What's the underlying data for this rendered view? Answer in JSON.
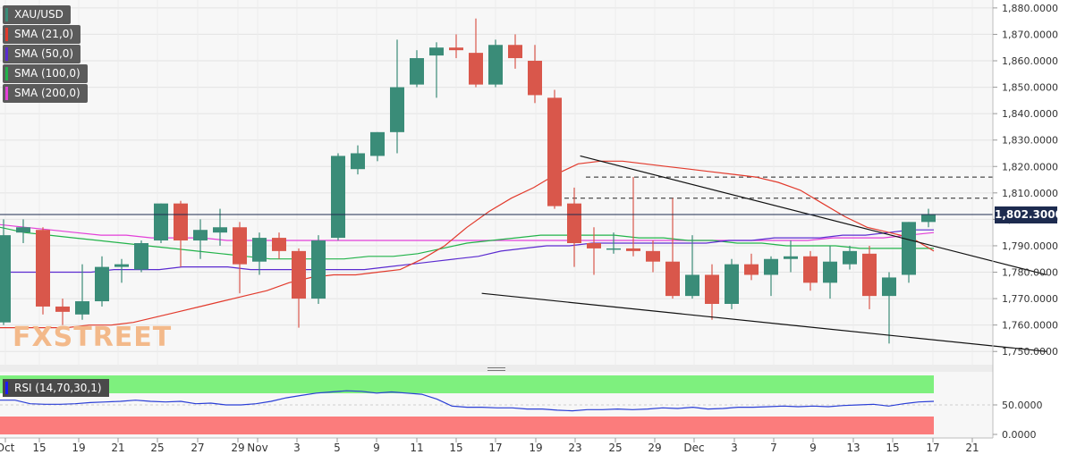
{
  "chart_data": {
    "type": "candlestick",
    "symbol": "XAU/USD",
    "last_price_label": "1,802.3000",
    "last_price": 1802.3,
    "ylim": [
      1745,
      1883
    ],
    "y_ticks": [
      "1,880.0000",
      "1,870.0000",
      "1,860.0000",
      "1,850.0000",
      "1,840.0000",
      "1,830.0000",
      "1,820.0000",
      "1,810.0000",
      "1,800.0000",
      "1,790.0000",
      "1,780.0000",
      "1,770.0000",
      "1,760.0000",
      "1,750.0000"
    ],
    "x_ticks": [
      "Oct",
      "15",
      "19",
      "21",
      "25",
      "27",
      "29",
      "Nov",
      "3",
      "5",
      "9",
      "11",
      "15",
      "17",
      "19",
      "23",
      "25",
      "29",
      "Dec",
      "3",
      "7",
      "9",
      "13",
      "15",
      "17",
      "21"
    ],
    "colors": {
      "up": "#3a8c78",
      "down": "#d9574b",
      "sma21": "#e23a2c",
      "sma50": "#5b2bd0",
      "sma100": "#22b34a",
      "sma200": "#e33fd8",
      "trend": "#111111",
      "rsi": "#2a3ed6"
    },
    "candles": [
      {
        "o": 1761,
        "h": 1800,
        "l": 1760,
        "c": 1794
      },
      {
        "o": 1795,
        "h": 1800,
        "l": 1791,
        "c": 1797
      },
      {
        "o": 1796,
        "h": 1797,
        "l": 1764,
        "c": 1767
      },
      {
        "o": 1767,
        "h": 1770,
        "l": 1760,
        "c": 1765
      },
      {
        "o": 1764,
        "h": 1783,
        "l": 1762,
        "c": 1769
      },
      {
        "o": 1769,
        "h": 1786,
        "l": 1767,
        "c": 1782
      },
      {
        "o": 1782,
        "h": 1785,
        "l": 1776,
        "c": 1783
      },
      {
        "o": 1781,
        "h": 1792,
        "l": 1780,
        "c": 1791
      },
      {
        "o": 1792,
        "h": 1806,
        "l": 1791,
        "c": 1806
      },
      {
        "o": 1806,
        "h": 1807,
        "l": 1782,
        "c": 1792
      },
      {
        "o": 1792,
        "h": 1800,
        "l": 1785,
        "c": 1796
      },
      {
        "o": 1795,
        "h": 1804,
        "l": 1790,
        "c": 1797
      },
      {
        "o": 1797,
        "h": 1799,
        "l": 1772,
        "c": 1783
      },
      {
        "o": 1784,
        "h": 1795,
        "l": 1779,
        "c": 1793
      },
      {
        "o": 1793,
        "h": 1795,
        "l": 1785,
        "c": 1788
      },
      {
        "o": 1788,
        "h": 1789,
        "l": 1759,
        "c": 1770
      },
      {
        "o": 1770,
        "h": 1794,
        "l": 1768,
        "c": 1792
      },
      {
        "o": 1793,
        "h": 1825,
        "l": 1792,
        "c": 1824
      },
      {
        "o": 1819,
        "h": 1828,
        "l": 1817,
        "c": 1825
      },
      {
        "o": 1824,
        "h": 1833,
        "l": 1822,
        "c": 1833
      },
      {
        "o": 1833,
        "h": 1868,
        "l": 1825,
        "c": 1850
      },
      {
        "o": 1851,
        "h": 1864,
        "l": 1850,
        "c": 1861
      },
      {
        "o": 1862,
        "h": 1867,
        "l": 1846,
        "c": 1865
      },
      {
        "o": 1865,
        "h": 1870,
        "l": 1861,
        "c": 1864
      },
      {
        "o": 1863,
        "h": 1876,
        "l": 1850,
        "c": 1851
      },
      {
        "o": 1851,
        "h": 1868,
        "l": 1850,
        "c": 1866
      },
      {
        "o": 1866,
        "h": 1870,
        "l": 1857,
        "c": 1861
      },
      {
        "o": 1860,
        "h": 1866,
        "l": 1844,
        "c": 1847
      },
      {
        "o": 1846,
        "h": 1849,
        "l": 1804,
        "c": 1805
      },
      {
        "o": 1806,
        "h": 1812,
        "l": 1782,
        "c": 1791
      },
      {
        "o": 1791,
        "h": 1797,
        "l": 1779,
        "c": 1789
      },
      {
        "o": 1789,
        "h": 1795,
        "l": 1787,
        "c": 1789
      },
      {
        "o": 1789,
        "h": 1816,
        "l": 1786,
        "c": 1788
      },
      {
        "o": 1788,
        "h": 1792,
        "l": 1780,
        "c": 1784
      },
      {
        "o": 1784,
        "h": 1808,
        "l": 1770,
        "c": 1771
      },
      {
        "o": 1771,
        "h": 1794,
        "l": 1770,
        "c": 1779
      },
      {
        "o": 1779,
        "h": 1783,
        "l": 1762,
        "c": 1768
      },
      {
        "o": 1768,
        "h": 1785,
        "l": 1766,
        "c": 1783
      },
      {
        "o": 1783,
        "h": 1787,
        "l": 1777,
        "c": 1779
      },
      {
        "o": 1779,
        "h": 1786,
        "l": 1771,
        "c": 1785
      },
      {
        "o": 1785,
        "h": 1792,
        "l": 1780,
        "c": 1786
      },
      {
        "o": 1786,
        "h": 1788,
        "l": 1773,
        "c": 1776
      },
      {
        "o": 1776,
        "h": 1790,
        "l": 1770,
        "c": 1784
      },
      {
        "o": 1783,
        "h": 1790,
        "l": 1781,
        "c": 1788
      },
      {
        "o": 1787,
        "h": 1790,
        "l": 1766,
        "c": 1771
      },
      {
        "o": 1771,
        "h": 1780,
        "l": 1753,
        "c": 1778
      },
      {
        "o": 1779,
        "h": 1799,
        "l": 1776,
        "c": 1799
      },
      {
        "o": 1799,
        "h": 1804,
        "l": 1797,
        "c": 1802
      }
    ],
    "sma21": [
      1759,
      1759,
      1759,
      1759,
      1760,
      1760,
      1761,
      1763,
      1765,
      1767,
      1769,
      1771,
      1773,
      1776,
      1778,
      1779,
      1779,
      1780,
      1781,
      1785,
      1790,
      1797,
      1803,
      1808,
      1812,
      1817,
      1821,
      1822,
      1822,
      1821,
      1820,
      1819,
      1818,
      1817,
      1816,
      1814,
      1811,
      1806,
      1801,
      1797,
      1795,
      1793,
      1788
    ],
    "sma50": [
      1780,
      1780,
      1780,
      1780,
      1780,
      1781,
      1781,
      1781,
      1782,
      1782,
      1782,
      1781,
      1781,
      1781,
      1781,
      1781,
      1781,
      1782,
      1783,
      1784,
      1785,
      1786,
      1788,
      1789,
      1790,
      1790,
      1791,
      1791,
      1791,
      1791,
      1791,
      1791,
      1792,
      1792,
      1793,
      1793,
      1793,
      1794,
      1794,
      1795,
      1796,
      1796
    ],
    "sma100": [
      1797,
      1795,
      1794,
      1793,
      1792,
      1791,
      1790,
      1789,
      1788,
      1787,
      1786,
      1785,
      1785,
      1785,
      1785,
      1786,
      1786,
      1787,
      1789,
      1791,
      1792,
      1793,
      1794,
      1794,
      1794,
      1794,
      1793,
      1793,
      1792,
      1792,
      1791,
      1791,
      1790,
      1790,
      1790,
      1789,
      1789,
      1789,
      1789
    ],
    "sma200": [
      1798,
      1797,
      1796,
      1795,
      1794,
      1794,
      1793,
      1793,
      1793,
      1792,
      1792,
      1792,
      1792,
      1792,
      1792,
      1792,
      1792,
      1792,
      1792,
      1792,
      1792,
      1792,
      1792,
      1792,
      1792,
      1792,
      1792,
      1792,
      1792,
      1792,
      1792,
      1792,
      1792,
      1793,
      1793,
      1793,
      1794,
      1795
    ],
    "dashed_levels": [
      1816,
      1808
    ],
    "trendlines": [
      {
        "from": [
          29.3,
          1824
        ],
        "to": [
          53,
          1779
        ]
      },
      {
        "from": [
          24.3,
          1772
        ],
        "to": [
          53,
          1750
        ]
      }
    ],
    "rsi_ticks": [
      "50.0000",
      "0.0000"
    ],
    "rsi_series": [
      58,
      58,
      52,
      51,
      51,
      52,
      54,
      55,
      56,
      58,
      56,
      55,
      56,
      52,
      53,
      50,
      50,
      52,
      56,
      62,
      66,
      70,
      72,
      74,
      73,
      70,
      72,
      70,
      68,
      60,
      48,
      46,
      46,
      45,
      45,
      43,
      43,
      41,
      40,
      42,
      42,
      43,
      42,
      43,
      45,
      44,
      46,
      43,
      44,
      46,
      46,
      47,
      48,
      47,
      48,
      47,
      49,
      50,
      51,
      48,
      52,
      55,
      56
    ],
    "legend": [
      {
        "label": "XAU/USD",
        "color": "#3a8c78"
      },
      {
        "label": "SMA (21,0)",
        "color": "#e23a2c"
      },
      {
        "label": "SMA (50,0)",
        "color": "#5b2bd0"
      },
      {
        "label": "SMA (100,0)",
        "color": "#22b34a"
      },
      {
        "label": "SMA (200,0)",
        "color": "#e33fd8"
      }
    ],
    "rsi_label": "RSI (14,70,30,1)"
  },
  "watermark": {
    "part1": "FX",
    "part2": "STREET"
  }
}
